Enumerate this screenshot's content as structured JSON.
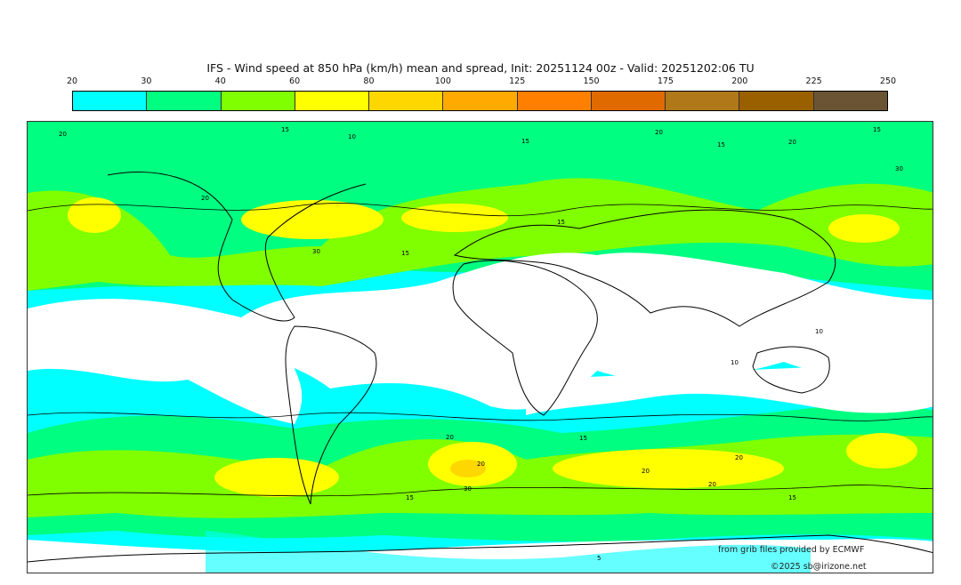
{
  "title": "IFS - Wind speed at 850 hPa (km/h) mean and spread, Init: 20251124 00z - Valid: 20251202:06 TU",
  "colorbar": {
    "ticks": [
      "20",
      "30",
      "40",
      "60",
      "80",
      "100",
      "125",
      "150",
      "175",
      "200",
      "225",
      "250"
    ],
    "colors": [
      "#00ffff",
      "#00ff80",
      "#80ff00",
      "#ffff00",
      "#ffd700",
      "#ffaa00",
      "#ff8000",
      "#e06a00",
      "#b07818",
      "#9a6000",
      "#6a5434"
    ]
  },
  "contour_labels": [
    "20",
    "15",
    "10",
    "15",
    "20",
    "15",
    "20",
    "15",
    "30",
    "15",
    "15",
    "10",
    "10",
    "15",
    "20",
    "20",
    "30",
    "15",
    "20",
    "20",
    "20",
    "15",
    "20",
    "30",
    "5"
  ],
  "credits": {
    "source": "from grib files provided by ECMWF",
    "copyright": "©2025 sb@irizone.net"
  }
}
